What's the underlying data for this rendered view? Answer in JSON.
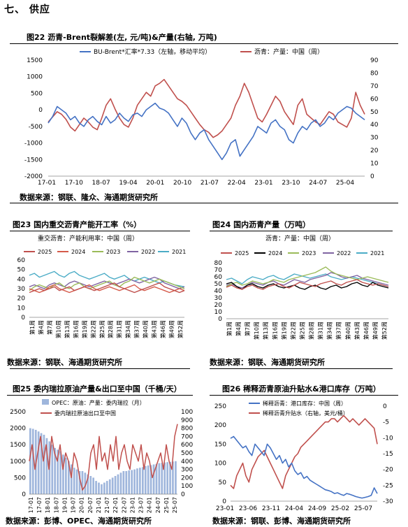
{
  "section_title": "七、   供应",
  "colors": {
    "blue": "#4472c4",
    "red": "#c0504d",
    "green": "#9bbb59",
    "purple": "#8064a2",
    "cyan": "#4bacc6",
    "black": "#000000",
    "bar": "#9fb6dc"
  },
  "fig22": {
    "title": "图22  沥青-Brent裂解差(左, 元/吨)&产量(右轴, 万吨)",
    "source": "数据来源：钢联、隆众、海通期货研究所",
    "chart_data": {
      "type": "line",
      "x_ticks": [
        "17-01",
        "17-10",
        "18-07",
        "19-04",
        "20-01",
        "20-10",
        "21-07",
        "22-04",
        "23-01",
        "23-10",
        "24-07",
        "25-04"
      ],
      "y_left_ticks": [
        1500,
        1000,
        500,
        0,
        -500,
        -1000,
        -1500,
        -2000
      ],
      "y_right_ticks": [
        90,
        80,
        70,
        60,
        50,
        40,
        30,
        20,
        10,
        0
      ],
      "ylim_left": [
        -2000,
        1500
      ],
      "ylim_right": [
        0,
        90
      ],
      "series": [
        {
          "name": "BU-Brent*汇率*7.33（左轴，移动平均）",
          "axis": "left",
          "color": "blue",
          "values": [
            -400,
            -200,
            100,
            0,
            -100,
            -300,
            -200,
            -400,
            -500,
            -300,
            -200,
            -350,
            -450,
            -200,
            -400,
            -300,
            -100,
            -250,
            -350,
            -150,
            -100,
            -200,
            0,
            100,
            200,
            50,
            0,
            -100,
            -300,
            -500,
            -250,
            -400,
            -700,
            -900,
            -700,
            -600,
            -900,
            -1100,
            -1300,
            -1500,
            -1300,
            -1000,
            -900,
            -1400,
            -1200,
            -1000,
            -800,
            -500,
            -600,
            -700,
            -400,
            -300,
            -500,
            -600,
            -900,
            -1000,
            -700,
            -500,
            -600,
            -400,
            -300,
            -500,
            -400,
            -200,
            -300,
            -100,
            0,
            100,
            50,
            -100,
            -200,
            -300
          ]
        },
        {
          "name": "沥青：产量：中国（周）",
          "axis": "right",
          "color": "red",
          "values": [
            42,
            46,
            50,
            48,
            44,
            38,
            35,
            40,
            45,
            42,
            38,
            36,
            45,
            55,
            60,
            52,
            45,
            40,
            38,
            45,
            55,
            60,
            65,
            62,
            70,
            72,
            75,
            70,
            65,
            60,
            58,
            55,
            50,
            45,
            40,
            36,
            34,
            30,
            32,
            35,
            40,
            45,
            55,
            62,
            72,
            65,
            55,
            45,
            42,
            48,
            55,
            62,
            58,
            50,
            45,
            40,
            55,
            60,
            48,
            45,
            42,
            40,
            45,
            50,
            48,
            42,
            40,
            38,
            45,
            65,
            55,
            48
          ]
        }
      ]
    }
  },
  "fig23": {
    "title": "图23  国内重交沥青产能开工率（%）",
    "source": "数据来源：钢联、海通期货研究所",
    "chart_data": {
      "type": "line",
      "subtitle": "重交沥青：产能利用率：中国（周）",
      "x_ticks": [
        "第1周",
        "第4周",
        "第7周",
        "第10周",
        "第13周",
        "第16周",
        "第19周",
        "第22周",
        "第25周",
        "第28周",
        "第31周",
        "第34周",
        "第37周",
        "第40周",
        "第43周",
        "第46周",
        "第49周",
        "第52周"
      ],
      "y_ticks": [
        60,
        50,
        40,
        30,
        20,
        10,
        0
      ],
      "ylim": [
        0,
        60
      ],
      "series": [
        {
          "name": "2025",
          "color": "red",
          "values": [
            26,
            28,
            30,
            28,
            30,
            32,
            28,
            30,
            32,
            28,
            30,
            32,
            30,
            28,
            30,
            32,
            34,
            36,
            32,
            30,
            28,
            26,
            28,
            30,
            32,
            34,
            36,
            32,
            30,
            28,
            26,
            28
          ]
        },
        {
          "name": "2024",
          "color": "red2",
          "values": [
            30,
            28,
            26,
            28,
            32,
            34,
            30,
            28,
            26,
            28,
            30,
            32,
            34,
            30,
            28,
            30,
            32,
            30,
            28,
            30,
            32,
            34,
            30,
            28,
            30,
            32,
            30,
            28,
            26,
            28,
            30,
            28
          ]
        },
        {
          "name": "2023",
          "color": "green",
          "values": [
            28,
            32,
            34,
            32,
            30,
            34,
            36,
            32,
            30,
            34,
            36,
            32,
            30,
            32,
            34,
            36,
            38,
            34,
            32,
            36,
            38,
            42,
            40,
            38,
            36,
            38,
            40,
            38,
            36,
            34,
            32,
            30
          ]
        },
        {
          "name": "2022",
          "color": "purple",
          "values": [
            32,
            34,
            32,
            30,
            34,
            36,
            34,
            32,
            36,
            38,
            36,
            34,
            32,
            34,
            36,
            38,
            36,
            34,
            36,
            38,
            40,
            38,
            36,
            38,
            40,
            42,
            40,
            36,
            34,
            32,
            30,
            32
          ]
        },
        {
          "name": "2021",
          "color": "cyan",
          "values": [
            44,
            46,
            42,
            44,
            46,
            48,
            44,
            42,
            46,
            48,
            44,
            42,
            40,
            42,
            44,
            46,
            42,
            40,
            42,
            44,
            40,
            38,
            40,
            42,
            40,
            38,
            36,
            38,
            36,
            34,
            33,
            32
          ]
        }
      ]
    }
  },
  "fig24": {
    "title": "图24  国内沥青产量（万吨）",
    "source": "数据来源：钢联、海通期货研究所",
    "chart_data": {
      "type": "line",
      "subtitle": "沥青：产量：中国（周）",
      "x_ticks": [
        "第1周",
        "第4周",
        "第7周",
        "第10周",
        "第13周",
        "第16周",
        "第19周",
        "第22周",
        "第25周",
        "第28周",
        "第31周",
        "第34周",
        "第37周",
        "第40周",
        "第43周",
        "第46周",
        "第49周",
        "第52周"
      ],
      "y_ticks": [
        80,
        70,
        60,
        50,
        40,
        30,
        20,
        10,
        0
      ],
      "ylim": [
        0,
        80
      ],
      "series": [
        {
          "name": "2025",
          "color": "red",
          "values": [
            45,
            48,
            44,
            42,
            46,
            48,
            44,
            42,
            46,
            48,
            50,
            46,
            44,
            48,
            52,
            50,
            48,
            46,
            50,
            52,
            54,
            50,
            48,
            52,
            54,
            56,
            52,
            50,
            48,
            50,
            48,
            46
          ]
        },
        {
          "name": "2024",
          "color": "black",
          "values": [
            50,
            52,
            46,
            42,
            48,
            50,
            46,
            44,
            48,
            50,
            46,
            44,
            46,
            48,
            44,
            42,
            46,
            48,
            44,
            42,
            46,
            48,
            44,
            46,
            50,
            52,
            48,
            46,
            52,
            48,
            46,
            44
          ]
        },
        {
          "name": "2023",
          "color": "green",
          "values": [
            46,
            50,
            52,
            48,
            50,
            54,
            52,
            50,
            52,
            56,
            54,
            52,
            56,
            58,
            60,
            62,
            64,
            66,
            70,
            74,
            68,
            64,
            62,
            60,
            58,
            56,
            58,
            60,
            58,
            56,
            54,
            52
          ]
        },
        {
          "name": "2022",
          "color": "purple",
          "values": [
            48,
            50,
            46,
            44,
            48,
            52,
            50,
            48,
            52,
            54,
            50,
            48,
            52,
            56,
            54,
            52,
            56,
            58,
            60,
            62,
            66,
            64,
            60,
            58,
            60,
            62,
            58,
            56,
            54,
            52,
            50,
            48
          ]
        },
        {
          "name": "2021",
          "color": "cyan",
          "values": [
            56,
            58,
            54,
            50,
            56,
            60,
            58,
            56,
            60,
            62,
            58,
            56,
            60,
            64,
            62,
            60,
            58,
            60,
            62,
            64,
            60,
            58,
            56,
            58,
            60,
            58,
            56,
            54,
            52,
            50,
            48,
            46
          ]
        }
      ]
    }
  },
  "fig25": {
    "title": "图25  委内瑞拉原油产量&出口至中国（千桶/天）",
    "source": "数据来源：彭博、OPEC、海通期货研究所",
    "chart_data": {
      "type": "bar",
      "x_ticks": [
        "17-01",
        "17-07",
        "18-01",
        "18-07",
        "19-01",
        "19-07",
        "20-01",
        "20-07",
        "21-01",
        "21-07",
        "22-01",
        "22-07",
        "23-01",
        "23-07",
        "24-01",
        "24-07",
        "25-01",
        "25-07"
      ],
      "y_left_ticks": [
        2500,
        2000,
        1500,
        1000,
        500,
        0
      ],
      "ylim_left": [
        0,
        2500
      ],
      "y_right_ticks": [
        1000,
        900,
        800,
        700,
        600,
        500,
        400,
        300,
        200,
        100,
        0
      ],
      "ylim_right": [
        0,
        1000
      ],
      "series": [
        {
          "name": "OPEC：原油：产量：委内瑞拉（月）",
          "axis": "left",
          "type": "bar",
          "color": "bar",
          "values": [
            2000,
            1980,
            1950,
            1900,
            1850,
            1800,
            1700,
            1600,
            1500,
            1400,
            1350,
            1300,
            1200,
            1100,
            1000,
            900,
            800,
            750,
            700,
            700,
            650,
            600,
            550,
            500,
            400,
            350,
            300,
            350,
            400,
            450,
            500,
            550,
            600,
            650,
            700,
            700,
            720,
            730,
            750,
            780,
            800,
            820,
            850,
            870,
            880,
            900,
            920,
            940,
            950,
            960,
            970,
            980,
            990,
            1000
          ]
        },
        {
          "name": "委内瑞拉原油出口至中国",
          "axis": "right",
          "type": "line",
          "color": "red",
          "values": [
            400,
            600,
            300,
            500,
            700,
            400,
            600,
            300,
            700,
            500,
            400,
            600,
            300,
            500,
            400,
            200,
            500,
            400,
            200,
            50,
            100,
            200,
            500,
            600,
            300,
            700,
            400,
            500,
            300,
            600,
            400,
            700,
            300,
            500,
            600,
            400,
            300,
            600,
            500,
            400,
            600,
            300,
            500,
            400,
            200,
            300,
            400,
            500,
            300,
            600,
            400,
            300,
            700,
            850
          ]
        }
      ]
    }
  },
  "fig26": {
    "title": "图26  稀释沥青原油升贴水&港口库存（万吨）",
    "source": "数据来源：钢联、彭博、海通期货研究所",
    "chart_data": {
      "type": "line",
      "x_ticks": [
        "23-01",
        "23-06",
        "23-11",
        "24-04",
        "24-09",
        "25-02",
        "25-07"
      ],
      "y_left_ticks": [
        250,
        200,
        150,
        100,
        50,
        0
      ],
      "ylim_left": [
        0,
        250
      ],
      "y_right_ticks": [
        0,
        -5,
        -10,
        -15,
        -20,
        -25,
        -30
      ],
      "ylim_right": [
        -30,
        0
      ],
      "series": [
        {
          "name": "稀释沥青：港口库存：中国（周）",
          "axis": "left",
          "color": "blue",
          "values": [
            165,
            170,
            160,
            150,
            140,
            145,
            130,
            120,
            150,
            140,
            130,
            120,
            150,
            140,
            125,
            110,
            120,
            100,
            110,
            90,
            100,
            80,
            70,
            75,
            60,
            65,
            55,
            50,
            45,
            40,
            35,
            30,
            28,
            25,
            20,
            22,
            18,
            15,
            20,
            18,
            15,
            12,
            10,
            8,
            10,
            12,
            15,
            35,
            20
          ]
        },
        {
          "name": "稀释沥青升贴水（右轴，美元/桶）",
          "axis": "right",
          "color": "red",
          "values": [
            -25,
            -26,
            -22,
            -20,
            -18,
            -22,
            -24,
            -20,
            -18,
            -16,
            -15,
            -14,
            -16,
            -18,
            -20,
            -22,
            -24,
            -26,
            -22,
            -20,
            -18,
            -16,
            -15,
            -13,
            -12,
            -11,
            -10,
            -9,
            -8,
            -7,
            -6,
            -5,
            -5,
            -4,
            -4,
            -5,
            -4,
            -3,
            -4,
            -5,
            -4,
            -5,
            -6,
            -5,
            -4,
            -5,
            -6,
            -7,
            -12
          ]
        }
      ]
    }
  }
}
